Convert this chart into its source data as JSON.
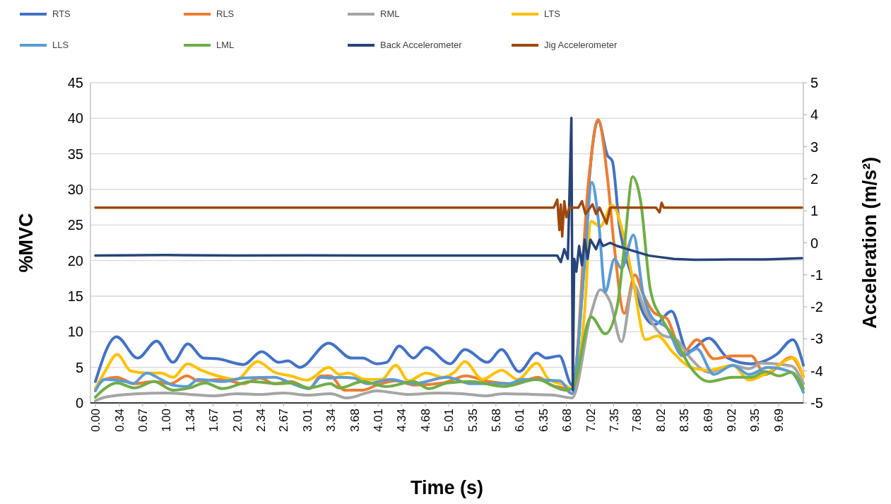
{
  "chart_data": {
    "type": "line",
    "xlabel": "Time (s)",
    "ylabel": "%MVC",
    "y2label": "Acceleration (m/s²)",
    "xlim": [
      -0.07,
      10.04
    ],
    "xticks": [
      {
        "value": 0,
        "label": "0.00"
      },
      {
        "value": 0.34,
        "label": "0.34"
      },
      {
        "value": 0.67,
        "label": "0.67"
      },
      {
        "value": 1,
        "label": "1.00"
      },
      {
        "value": 1.34,
        "label": "1.34"
      },
      {
        "value": 1.67,
        "label": "1.67"
      },
      {
        "value": 2.01,
        "label": "2.01"
      },
      {
        "value": 2.34,
        "label": "2.34"
      },
      {
        "value": 2.67,
        "label": "2.67"
      },
      {
        "value": 3.01,
        "label": "3.01"
      },
      {
        "value": 3.34,
        "label": "3.34"
      },
      {
        "value": 3.68,
        "label": "3.68"
      },
      {
        "value": 4.01,
        "label": "4.01"
      },
      {
        "value": 4.34,
        "label": "4.34"
      },
      {
        "value": 4.68,
        "label": "4.68"
      },
      {
        "value": 5.01,
        "label": "5.01"
      },
      {
        "value": 5.35,
        "label": "5.35"
      },
      {
        "value": 5.68,
        "label": "5.68"
      },
      {
        "value": 6.01,
        "label": "6.01"
      },
      {
        "value": 6.35,
        "label": "6.35"
      },
      {
        "value": 6.68,
        "label": "6.68"
      },
      {
        "value": 7.02,
        "label": "7.02"
      },
      {
        "value": 7.35,
        "label": "7.35"
      },
      {
        "value": 7.68,
        "label": "7.68"
      },
      {
        "value": 8.02,
        "label": "8.02"
      },
      {
        "value": 8.35,
        "label": "8.35"
      },
      {
        "value": 8.69,
        "label": "8.69"
      },
      {
        "value": 9.02,
        "label": "9.02"
      },
      {
        "value": 9.35,
        "label": "9.35"
      },
      {
        "value": 9.69,
        "label": "9.69"
      }
    ],
    "ylim": [
      0,
      45
    ],
    "yticks": [
      0,
      5,
      10,
      15,
      20,
      25,
      30,
      35,
      40,
      45
    ],
    "y2lim": [
      -5,
      5
    ],
    "y2ticks": [
      -5,
      -4,
      -3,
      -2,
      -1,
      0,
      1,
      2,
      3,
      4,
      5
    ],
    "grid": "y",
    "legend": "top",
    "marker": "none",
    "line_style": "solid",
    "series": [
      {
        "name": "RTS",
        "color": "#4472c4",
        "x": [
          0,
          0.3,
          0.6,
          0.87,
          1.1,
          1.31,
          1.53,
          1.73,
          2.1,
          2.36,
          2.6,
          2.73,
          2.9,
          3.31,
          3.63,
          3.79,
          3.99,
          4.13,
          4.31,
          4.51,
          4.69,
          5.03,
          5.24,
          5.56,
          5.76,
          6.01,
          6.26,
          6.39,
          6.58,
          6.76,
          6.9,
          7.0,
          7.13,
          7.26,
          7.33,
          7.43,
          7.6,
          7.77,
          7.93,
          8.17,
          8.4,
          8.7,
          8.97,
          9.3,
          9.67,
          9.89,
          10.04
        ],
        "values": [
          3,
          9.3,
          6.3,
          8.7,
          5.7,
          8.3,
          6.3,
          6.2,
          5.4,
          7.2,
          5.7,
          5.9,
          5,
          8.4,
          6.3,
          6.3,
          5.5,
          5.7,
          8,
          6.3,
          7.8,
          5.5,
          7.5,
          5.7,
          7.5,
          4.4,
          7,
          6.3,
          6.6,
          2.5,
          15,
          31,
          39.7,
          34.8,
          34,
          25,
          18,
          12.6,
          11,
          12.9,
          7.2,
          9.1,
          6.3,
          5.5,
          6.9,
          8.9,
          5.3
        ]
      },
      {
        "name": "RLS",
        "color": "#ed7d31",
        "x": [
          0,
          0.13,
          0.3,
          0.56,
          0.83,
          1.06,
          1.3,
          1.46,
          1.8,
          2.1,
          2.33,
          2.54,
          2.77,
          3.03,
          3.2,
          3.33,
          3.53,
          3.79,
          3.99,
          4.26,
          4.53,
          4.93,
          5.26,
          5.53,
          5.93,
          6.28,
          6.46,
          6.66,
          6.76,
          7.0,
          7.13,
          7.26,
          7.36,
          7.5,
          7.65,
          7.77,
          7.93,
          8.1,
          8.33,
          8.53,
          8.77,
          9.04,
          9.3,
          9.5,
          9.87,
          10.04
        ],
        "values": [
          2,
          3.3,
          3.6,
          2.7,
          3,
          2.7,
          3.8,
          3.1,
          3.3,
          2.7,
          3.5,
          2.7,
          3,
          2,
          3.8,
          3.8,
          1.8,
          1.8,
          2.5,
          3.1,
          2.5,
          2.8,
          3.8,
          3.1,
          2.7,
          3.6,
          2.5,
          2,
          1.3,
          31.8,
          39.8,
          31.8,
          21.8,
          12.6,
          18,
          15.2,
          12.6,
          11.9,
          7,
          8.9,
          6.2,
          6.6,
          6.6,
          4,
          6.4,
          3.7
        ]
      },
      {
        "name": "RML",
        "color": "#a5a5a5",
        "x": [
          0,
          0.13,
          0.6,
          1,
          1.34,
          1.67,
          2.01,
          2.34,
          2.67,
          3.01,
          3.34,
          3.56,
          3.99,
          4.43,
          4.84,
          5.2,
          5.53,
          5.79,
          6.2,
          6.5,
          6.76,
          7.03,
          7.16,
          7.3,
          7.46,
          7.63,
          7.8,
          8.03,
          8.24,
          8.44,
          8.7,
          9.04,
          9.27,
          9.44,
          9.87,
          10.04
        ],
        "values": [
          0.3,
          0.8,
          1.3,
          1.4,
          1.2,
          1,
          1.3,
          1.2,
          1.4,
          1.1,
          1.3,
          0.7,
          1.7,
          1.2,
          1.4,
          1.3,
          1,
          1.3,
          1.2,
          1.1,
          0.7,
          12.6,
          15.9,
          14.2,
          8.6,
          16.6,
          12.9,
          9.6,
          8.9,
          6.3,
          4.3,
          5.3,
          4.8,
          5.6,
          5.2,
          2.7
        ]
      },
      {
        "name": "LTS",
        "color": "#ffc000",
        "x": [
          0,
          0.13,
          0.31,
          0.5,
          0.73,
          0.93,
          1.1,
          1.31,
          1.5,
          1.73,
          2,
          2.3,
          2.54,
          2.77,
          3,
          3.31,
          3.46,
          3.59,
          3.83,
          4.06,
          4.26,
          4.44,
          4.69,
          4.93,
          5.09,
          5.24,
          5.49,
          5.76,
          5.99,
          6.26,
          6.43,
          6.66,
          6.76,
          6.93,
          7.03,
          7.16,
          7.33,
          7.5,
          7.63,
          7.8,
          7.97,
          8.2,
          8.44,
          8.7,
          9.04,
          9.27,
          9.54,
          9.9,
          10.04
        ],
        "values": [
          2,
          4.3,
          6.8,
          4.5,
          4.2,
          4.2,
          3.6,
          5.5,
          4.6,
          3.8,
          3.3,
          5.8,
          4.3,
          3.8,
          3.2,
          5,
          4,
          4.2,
          3.3,
          3.3,
          5.3,
          3.1,
          4.2,
          3.6,
          4.3,
          5.8,
          3.3,
          4.6,
          3.3,
          5.6,
          3.3,
          2.5,
          2,
          11.9,
          25.5,
          24.8,
          27.8,
          23.1,
          16.9,
          8.9,
          9.4,
          7,
          5,
          4.6,
          5.3,
          3.2,
          4.3,
          6.3,
          3.7
        ]
      },
      {
        "name": "LLS",
        "color": "#5b9bd5",
        "x": [
          0,
          0.13,
          0.43,
          0.53,
          0.73,
          0.93,
          1.1,
          1.3,
          1.46,
          1.8,
          2.1,
          2.54,
          2.77,
          3.03,
          3.2,
          3.33,
          3.46,
          3.66,
          3.86,
          4.19,
          4.51,
          4.99,
          5.33,
          5.86,
          6.06,
          6.59,
          6.76,
          6.93,
          7.04,
          7.14,
          7.23,
          7.36,
          7.46,
          7.63,
          7.77,
          7.9,
          8.1,
          8.33,
          8.53,
          8.77,
          9.04,
          9.27,
          9.54,
          9.87,
          10.04
        ],
        "values": [
          1.7,
          3.3,
          3,
          2.7,
          4.2,
          3.3,
          2.5,
          2.3,
          3.3,
          3,
          3.5,
          3.6,
          2.8,
          2,
          3.6,
          3.5,
          3.6,
          3.5,
          2.7,
          3.3,
          2.7,
          3.6,
          2.7,
          2.7,
          3.3,
          3.1,
          1.3,
          18.6,
          31,
          25.1,
          15.6,
          20.2,
          18.9,
          23.6,
          15.2,
          11.9,
          10.6,
          6.6,
          7.6,
          4,
          5.3,
          4,
          5,
          4.3,
          1.5
        ]
      },
      {
        "name": "LML",
        "color": "#70ad47",
        "x": [
          0,
          0.13,
          0.3,
          0.56,
          0.83,
          1.1,
          1.33,
          1.56,
          1.8,
          2.2,
          2.6,
          2.8,
          3.03,
          3.33,
          3.46,
          3.79,
          4.13,
          4.51,
          4.73,
          4.99,
          5.33,
          5.79,
          6.26,
          6.66,
          6.76,
          7.03,
          7.23,
          7.4,
          7.5,
          7.62,
          7.73,
          7.87,
          8.03,
          8.24,
          8.44,
          8.7,
          9.04,
          9.3,
          9.5,
          9.7,
          9.87,
          10.04
        ],
        "values": [
          0.8,
          2,
          2.8,
          2.1,
          3,
          1.8,
          2.1,
          2.8,
          2,
          3,
          2.7,
          2.8,
          2.1,
          2.7,
          2.1,
          3,
          2.3,
          3,
          2,
          2.8,
          3,
          2.3,
          3.3,
          1.8,
          2,
          12.1,
          9.7,
          13.6,
          21.8,
          31.8,
          28.5,
          15.9,
          11.9,
          8.6,
          5,
          3,
          3.6,
          3.6,
          4.4,
          3.8,
          4.3,
          2
        ]
      },
      {
        "name": "Back Accelerometer",
        "color": "#264478",
        "axis": "y2",
        "x": [
          0,
          1,
          2,
          3,
          4,
          5,
          6,
          6.55,
          6.6,
          6.65,
          6.7,
          6.75,
          6.77,
          6.79,
          6.82,
          6.86,
          6.9,
          6.94,
          6.98,
          7.02,
          7.1,
          7.15,
          7.2,
          7.3,
          7.4,
          7.55,
          7.7,
          7.85,
          8.02,
          8.2,
          8.5,
          9,
          9.5,
          10.02
        ],
        "values": [
          -0.4,
          -0.38,
          -0.4,
          -0.39,
          -0.4,
          -0.4,
          -0.4,
          -0.4,
          -0.6,
          -0.2,
          -0.5,
          3.9,
          -4.6,
          -0.5,
          -0.9,
          -0.1,
          -0.7,
          0.1,
          -0.5,
          0.1,
          -0.2,
          0.1,
          -0.1,
          0,
          -0.1,
          -0.2,
          -0.3,
          -0.4,
          -0.45,
          -0.5,
          -0.53,
          -0.52,
          -0.52,
          -0.48
        ]
      },
      {
        "name": "Jig Accelerometer",
        "color": "#9e480e",
        "axis": "y2",
        "x": [
          0,
          1,
          2,
          3,
          4,
          5,
          6,
          6.5,
          6.55,
          6.58,
          6.6,
          6.62,
          6.65,
          6.68,
          6.72,
          6.85,
          6.9,
          6.95,
          7.05,
          7.1,
          7.15,
          7.25,
          7.3,
          7.4,
          7.95,
          8,
          8.03,
          8.06,
          9,
          10.02
        ],
        "values": [
          1.1,
          1.1,
          1.1,
          1.1,
          1.1,
          1.1,
          1.1,
          1.1,
          1.35,
          0.4,
          1.2,
          0.2,
          1.3,
          0.8,
          1.1,
          1.1,
          1.3,
          0.9,
          1.2,
          0.9,
          1.1,
          0.6,
          1.1,
          1.1,
          1.1,
          0.95,
          1.25,
          1.1,
          1.1,
          1.1
        ]
      }
    ]
  }
}
